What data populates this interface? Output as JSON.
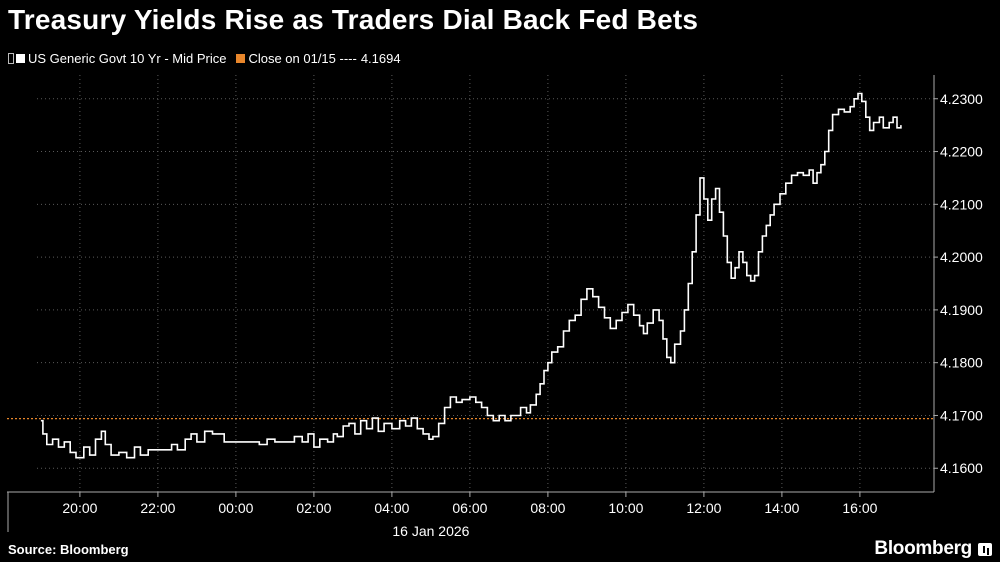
{
  "header": {
    "title": "Treasury Yields Rise as Traders Dial Back Fed Bets"
  },
  "legend": {
    "series_label": "US Generic Govt 10 Yr - Mid Price",
    "series_color": "#ffffff",
    "reference_label": "Close on 01/15 ----",
    "reference_value": "4.1694",
    "reference_color": "#e8862b"
  },
  "footer": {
    "source": "Source: Bloomberg",
    "brand": "Bloomberg"
  },
  "chart_data": {
    "type": "line",
    "title": "Treasury Yields Rise as Traders Dial Back Fed Bets",
    "series": [
      {
        "name": "US Generic Govt 10 Yr - Mid Price",
        "color": "#ffffff",
        "x_hours_label_note": "x values are hours on the time axis from 20:00 (Jan 15) through 16:00 (16 Jan 2026)",
        "points": [
          [
            19.0,
            4.169
          ],
          [
            19.05,
            4.1665
          ],
          [
            19.15,
            4.1645
          ],
          [
            19.3,
            4.1655
          ],
          [
            19.45,
            4.164
          ],
          [
            19.6,
            4.165
          ],
          [
            19.75,
            4.163
          ],
          [
            19.9,
            4.162
          ],
          [
            20.1,
            4.164
          ],
          [
            20.25,
            4.1625
          ],
          [
            20.4,
            4.1655
          ],
          [
            20.55,
            4.167
          ],
          [
            20.65,
            4.1645
          ],
          [
            20.8,
            4.1625
          ],
          [
            21.0,
            4.163
          ],
          [
            21.2,
            4.162
          ],
          [
            21.4,
            4.164
          ],
          [
            21.55,
            4.1625
          ],
          [
            21.75,
            4.1635
          ],
          [
            22.0,
            4.1635
          ],
          [
            22.2,
            4.1635
          ],
          [
            22.35,
            4.1645
          ],
          [
            22.5,
            4.1635
          ],
          [
            22.7,
            4.1655
          ],
          [
            22.85,
            4.1665
          ],
          [
            23.0,
            4.165
          ],
          [
            23.2,
            4.167
          ],
          [
            23.4,
            4.1665
          ],
          [
            23.55,
            4.1665
          ],
          [
            23.7,
            4.165
          ],
          [
            23.9,
            4.165
          ],
          [
            24.1,
            4.165
          ],
          [
            24.35,
            4.165
          ],
          [
            24.6,
            4.1645
          ],
          [
            24.8,
            4.1655
          ],
          [
            25.0,
            4.165
          ],
          [
            25.3,
            4.165
          ],
          [
            25.5,
            4.166
          ],
          [
            25.7,
            4.165
          ],
          [
            25.85,
            4.1665
          ],
          [
            26.0,
            4.164
          ],
          [
            26.15,
            4.1655
          ],
          [
            26.35,
            4.165
          ],
          [
            26.5,
            4.1665
          ],
          [
            26.6,
            4.166
          ],
          [
            26.75,
            4.168
          ],
          [
            26.9,
            4.1685
          ],
          [
            27.05,
            4.1665
          ],
          [
            27.2,
            4.169
          ],
          [
            27.35,
            4.1675
          ],
          [
            27.5,
            4.1695
          ],
          [
            27.65,
            4.167
          ],
          [
            27.8,
            4.1685
          ],
          [
            28.0,
            4.1675
          ],
          [
            28.2,
            4.169
          ],
          [
            28.35,
            4.168
          ],
          [
            28.5,
            4.1695
          ],
          [
            28.65,
            4.1675
          ],
          [
            28.8,
            4.1665
          ],
          [
            28.95,
            4.1655
          ],
          [
            29.05,
            4.166
          ],
          [
            29.2,
            4.1685
          ],
          [
            29.35,
            4.1715
          ],
          [
            29.5,
            4.1735
          ],
          [
            29.65,
            4.1725
          ],
          [
            29.8,
            4.173
          ],
          [
            30.0,
            4.1735
          ],
          [
            30.15,
            4.1725
          ],
          [
            30.3,
            4.1715
          ],
          [
            30.45,
            4.17
          ],
          [
            30.6,
            4.169
          ],
          [
            30.75,
            4.17
          ],
          [
            30.9,
            4.169
          ],
          [
            31.05,
            4.17
          ],
          [
            31.2,
            4.17
          ],
          [
            31.3,
            4.1715
          ],
          [
            31.45,
            4.1705
          ],
          [
            31.55,
            4.172
          ],
          [
            31.7,
            4.174
          ],
          [
            31.8,
            4.176
          ],
          [
            31.9,
            4.1785
          ],
          [
            32.0,
            4.18
          ],
          [
            32.1,
            4.182
          ],
          [
            32.25,
            4.183
          ],
          [
            32.4,
            4.186
          ],
          [
            32.55,
            4.188
          ],
          [
            32.7,
            4.189
          ],
          [
            32.85,
            4.192
          ],
          [
            33.0,
            4.194
          ],
          [
            33.15,
            4.1925
          ],
          [
            33.3,
            4.1905
          ],
          [
            33.45,
            4.1885
          ],
          [
            33.6,
            4.1865
          ],
          [
            33.75,
            4.188
          ],
          [
            33.9,
            4.1895
          ],
          [
            34.05,
            4.191
          ],
          [
            34.2,
            4.189
          ],
          [
            34.35,
            4.187
          ],
          [
            34.45,
            4.1855
          ],
          [
            34.55,
            4.1875
          ],
          [
            34.7,
            4.19
          ],
          [
            34.85,
            4.188
          ],
          [
            34.95,
            4.1845
          ],
          [
            35.05,
            4.181
          ],
          [
            35.15,
            4.18
          ],
          [
            35.25,
            4.1835
          ],
          [
            35.4,
            4.186
          ],
          [
            35.5,
            4.19
          ],
          [
            35.6,
            4.195
          ],
          [
            35.7,
            4.201
          ],
          [
            35.8,
            4.208
          ],
          [
            35.9,
            4.215
          ],
          [
            36.0,
            4.211
          ],
          [
            36.1,
            4.207
          ],
          [
            36.2,
            4.211
          ],
          [
            36.3,
            4.213
          ],
          [
            36.4,
            4.2085
          ],
          [
            36.5,
            4.204
          ],
          [
            36.6,
            4.199
          ],
          [
            36.7,
            4.196
          ],
          [
            36.8,
            4.198
          ],
          [
            36.9,
            4.201
          ],
          [
            37.0,
            4.199
          ],
          [
            37.1,
            4.1965
          ],
          [
            37.2,
            4.1955
          ],
          [
            37.3,
            4.1965
          ],
          [
            37.4,
            4.201
          ],
          [
            37.5,
            4.204
          ],
          [
            37.6,
            4.206
          ],
          [
            37.7,
            4.208
          ],
          [
            37.8,
            4.21
          ],
          [
            37.95,
            4.212
          ],
          [
            38.1,
            4.214
          ],
          [
            38.25,
            4.2155
          ],
          [
            38.4,
            4.216
          ],
          [
            38.55,
            4.2155
          ],
          [
            38.7,
            4.2165
          ],
          [
            38.8,
            4.214
          ],
          [
            38.9,
            4.216
          ],
          [
            39.0,
            4.2175
          ],
          [
            39.1,
            4.22
          ],
          [
            39.2,
            4.224
          ],
          [
            39.3,
            4.227
          ],
          [
            39.45,
            4.228
          ],
          [
            39.6,
            4.2275
          ],
          [
            39.75,
            4.2285
          ],
          [
            39.85,
            4.23
          ],
          [
            39.95,
            4.231
          ],
          [
            40.05,
            4.2295
          ],
          [
            40.15,
            4.2265
          ],
          [
            40.25,
            4.224
          ],
          [
            40.35,
            4.2255
          ],
          [
            40.5,
            4.2265
          ],
          [
            40.6,
            4.2245
          ],
          [
            40.75,
            4.2255
          ],
          [
            40.85,
            4.2265
          ],
          [
            40.95,
            4.2245
          ],
          [
            41.05,
            4.225
          ]
        ]
      }
    ],
    "reference_line": {
      "label": "Close on 01/15",
      "value": 4.1694,
      "color": "#e8862b"
    },
    "x_ticks": [
      {
        "label": "20:00",
        "hour": 20
      },
      {
        "label": "22:00",
        "hour": 22
      },
      {
        "label": "00:00",
        "hour": 24
      },
      {
        "label": "02:00",
        "hour": 26
      },
      {
        "label": "04:00",
        "hour": 28
      },
      {
        "label": "06:00",
        "hour": 30
      },
      {
        "label": "08:00",
        "hour": 32
      },
      {
        "label": "10:00",
        "hour": 34
      },
      {
        "label": "12:00",
        "hour": 36
      },
      {
        "label": "14:00",
        "hour": 38
      },
      {
        "label": "16:00",
        "hour": 40
      }
    ],
    "x_sublabel": "16 Jan 2026",
    "xlim": [
      18.9,
      41.9
    ],
    "y_ticks": [
      {
        "label": "4.1600",
        "value": 4.16
      },
      {
        "label": "4.1700",
        "value": 4.17
      },
      {
        "label": "4.1800",
        "value": 4.18
      },
      {
        "label": "4.1900",
        "value": 4.19
      },
      {
        "label": "4.2000",
        "value": 4.2
      },
      {
        "label": "4.2100",
        "value": 4.21
      },
      {
        "label": "4.2200",
        "value": 4.22
      },
      {
        "label": "4.2300",
        "value": 4.23
      }
    ],
    "ylim": [
      4.1555,
      4.2345
    ],
    "grid": true,
    "y_axis_position": "right",
    "legend_placement": "top-left"
  }
}
